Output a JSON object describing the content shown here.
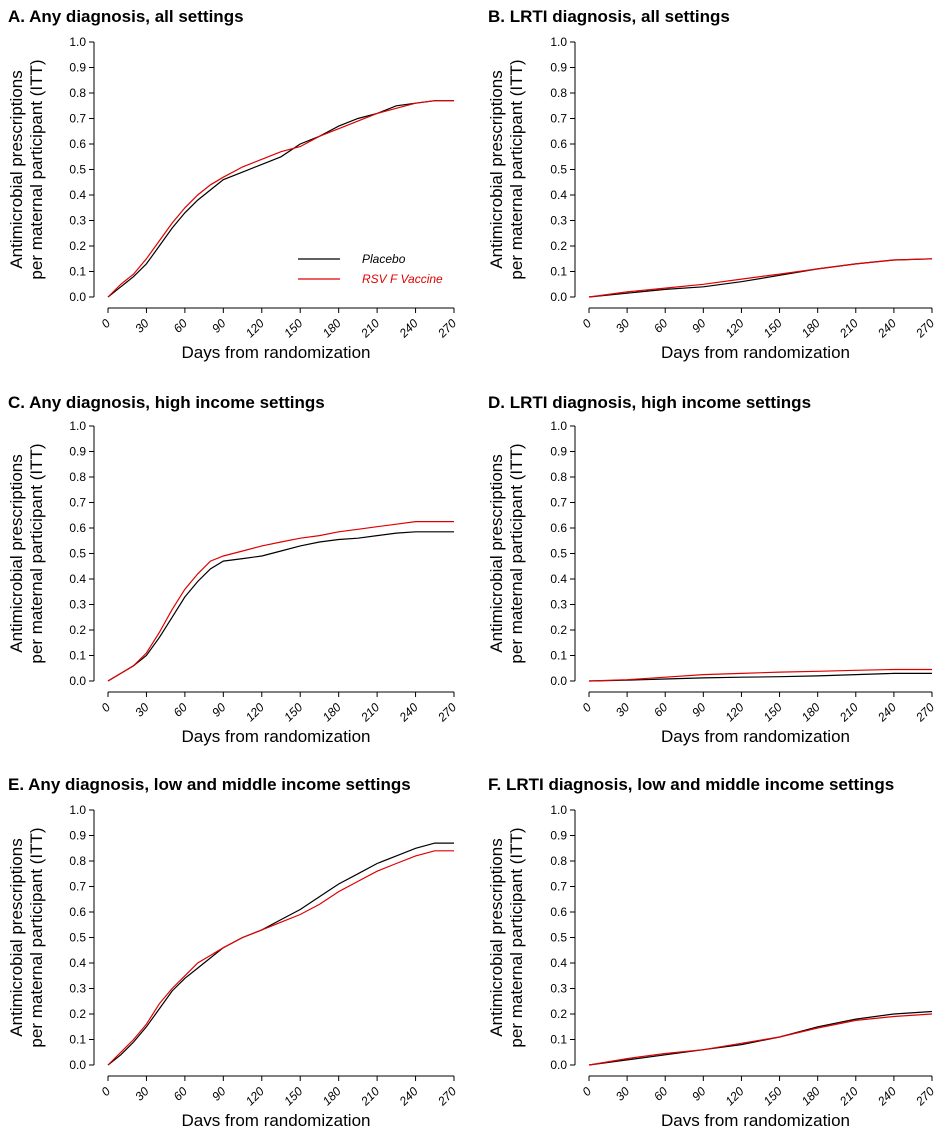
{
  "legend": {
    "entries": [
      {
        "label": "Placebo",
        "color": "#000000"
      },
      {
        "label": "RSV F Vaccine",
        "color": "#e00000"
      }
    ]
  },
  "chart_data": [
    {
      "type": "line",
      "title": "A. Any diagnosis, all settings",
      "xlabel": "Days from randomization",
      "ylabel": [
        "Antimicrobial prescriptions",
        "per maternal participant (ITT)"
      ],
      "xlim": [
        0,
        270
      ],
      "ylim": [
        0,
        1.0
      ],
      "xticks": [
        "0",
        "30",
        "60",
        "90",
        "120",
        "150",
        "180",
        "210",
        "240",
        "270"
      ],
      "yticks": [
        "0.0",
        "0.1",
        "0.2",
        "0.3",
        "0.4",
        "0.5",
        "0.6",
        "0.7",
        "0.8",
        "0.9",
        "1.0"
      ],
      "legend_position": "inside-bottom-right",
      "series": [
        {
          "name": "Placebo",
          "color": "#000000",
          "x": [
            0,
            10,
            20,
            30,
            40,
            50,
            60,
            70,
            80,
            90,
            105,
            120,
            135,
            150,
            165,
            180,
            195,
            210,
            225,
            240,
            255,
            270
          ],
          "y": [
            0.0,
            0.04,
            0.08,
            0.13,
            0.2,
            0.27,
            0.33,
            0.38,
            0.42,
            0.46,
            0.49,
            0.52,
            0.55,
            0.6,
            0.63,
            0.67,
            0.7,
            0.72,
            0.75,
            0.76,
            0.77,
            0.77
          ]
        },
        {
          "name": "RSV F Vaccine",
          "color": "#e00000",
          "x": [
            0,
            10,
            20,
            30,
            40,
            50,
            60,
            70,
            80,
            90,
            105,
            120,
            135,
            150,
            165,
            180,
            195,
            210,
            225,
            240,
            255,
            270
          ],
          "y": [
            0.0,
            0.05,
            0.09,
            0.15,
            0.22,
            0.29,
            0.35,
            0.4,
            0.44,
            0.47,
            0.51,
            0.54,
            0.57,
            0.59,
            0.63,
            0.66,
            0.69,
            0.72,
            0.74,
            0.76,
            0.77,
            0.77
          ]
        }
      ]
    },
    {
      "type": "line",
      "title": "B. LRTI diagnosis, all settings",
      "xlabel": "Days from randomization",
      "ylabel": [
        "Antimicrobial prescriptions",
        "per maternal participant (ITT)"
      ],
      "xlim": [
        0,
        270
      ],
      "ylim": [
        0,
        1.0
      ],
      "xticks": [
        "0",
        "30",
        "60",
        "90",
        "120",
        "150",
        "180",
        "210",
        "240",
        "270"
      ],
      "yticks": [
        "0.0",
        "0.1",
        "0.2",
        "0.3",
        "0.4",
        "0.5",
        "0.6",
        "0.7",
        "0.8",
        "0.9",
        "1.0"
      ],
      "series": [
        {
          "name": "Placebo",
          "color": "#000000",
          "x": [
            0,
            30,
            60,
            90,
            120,
            150,
            180,
            210,
            240,
            270
          ],
          "y": [
            0.0,
            0.015,
            0.03,
            0.04,
            0.06,
            0.085,
            0.11,
            0.13,
            0.145,
            0.15
          ]
        },
        {
          "name": "RSV F Vaccine",
          "color": "#e00000",
          "x": [
            0,
            30,
            60,
            90,
            120,
            150,
            180,
            210,
            240,
            270
          ],
          "y": [
            0.0,
            0.02,
            0.035,
            0.05,
            0.07,
            0.09,
            0.11,
            0.13,
            0.145,
            0.15
          ]
        }
      ]
    },
    {
      "type": "line",
      "title": "C. Any diagnosis, high income settings",
      "xlabel": "Days from randomization",
      "ylabel": [
        "Antimicrobial prescriptions",
        "per maternal participant (ITT)"
      ],
      "xlim": [
        0,
        270
      ],
      "ylim": [
        0,
        1.0
      ],
      "xticks": [
        "0",
        "30",
        "60",
        "90",
        "120",
        "150",
        "180",
        "210",
        "240",
        "270"
      ],
      "yticks": [
        "0.0",
        "0.1",
        "0.2",
        "0.3",
        "0.4",
        "0.5",
        "0.6",
        "0.7",
        "0.8",
        "0.9",
        "1.0"
      ],
      "series": [
        {
          "name": "Placebo",
          "color": "#000000",
          "x": [
            0,
            10,
            20,
            30,
            40,
            50,
            60,
            70,
            80,
            90,
            105,
            120,
            135,
            150,
            165,
            180,
            195,
            210,
            225,
            240,
            255,
            270
          ],
          "y": [
            0.0,
            0.03,
            0.06,
            0.1,
            0.17,
            0.25,
            0.33,
            0.39,
            0.44,
            0.47,
            0.48,
            0.49,
            0.51,
            0.53,
            0.545,
            0.555,
            0.56,
            0.57,
            0.58,
            0.585,
            0.585,
            0.585
          ]
        },
        {
          "name": "RSV F Vaccine",
          "color": "#e00000",
          "x": [
            0,
            10,
            20,
            30,
            40,
            50,
            60,
            70,
            80,
            90,
            105,
            120,
            135,
            150,
            165,
            180,
            195,
            210,
            225,
            240,
            255,
            270
          ],
          "y": [
            0.0,
            0.03,
            0.06,
            0.11,
            0.19,
            0.28,
            0.36,
            0.42,
            0.47,
            0.49,
            0.51,
            0.53,
            0.545,
            0.56,
            0.57,
            0.585,
            0.595,
            0.605,
            0.615,
            0.625,
            0.625,
            0.625
          ]
        }
      ]
    },
    {
      "type": "line",
      "title": "D. LRTI diagnosis, high income settings",
      "xlabel": "Days from randomization",
      "ylabel": [
        "Antimicrobial prescriptions",
        "per maternal participant (ITT)"
      ],
      "xlim": [
        0,
        270
      ],
      "ylim": [
        0,
        1.0
      ],
      "xticks": [
        "0",
        "30",
        "60",
        "90",
        "120",
        "150",
        "180",
        "210",
        "240",
        "270"
      ],
      "yticks": [
        "0.0",
        "0.1",
        "0.2",
        "0.3",
        "0.4",
        "0.5",
        "0.6",
        "0.7",
        "0.8",
        "0.9",
        "1.0"
      ],
      "series": [
        {
          "name": "Placebo",
          "color": "#000000",
          "x": [
            0,
            30,
            60,
            90,
            120,
            150,
            180,
            210,
            240,
            270
          ],
          "y": [
            0.0,
            0.003,
            0.008,
            0.012,
            0.015,
            0.017,
            0.02,
            0.025,
            0.03,
            0.03
          ]
        },
        {
          "name": "RSV F Vaccine",
          "color": "#e00000",
          "x": [
            0,
            30,
            60,
            90,
            120,
            150,
            180,
            210,
            240,
            270
          ],
          "y": [
            0.0,
            0.005,
            0.015,
            0.025,
            0.03,
            0.035,
            0.038,
            0.042,
            0.045,
            0.045
          ]
        }
      ]
    },
    {
      "type": "line",
      "title": "E. Any diagnosis, low and middle income settings",
      "xlabel": "Days from randomization",
      "ylabel": [
        "Antimicrobial prescriptions",
        "per maternal participant (ITT)"
      ],
      "xlim": [
        0,
        270
      ],
      "ylim": [
        0,
        1.0
      ],
      "xticks": [
        "0",
        "30",
        "60",
        "90",
        "120",
        "150",
        "180",
        "210",
        "240",
        "270"
      ],
      "yticks": [
        "0.0",
        "0.1",
        "0.2",
        "0.3",
        "0.4",
        "0.5",
        "0.6",
        "0.7",
        "0.8",
        "0.9",
        "1.0"
      ],
      "series": [
        {
          "name": "Placebo",
          "color": "#000000",
          "x": [
            0,
            10,
            20,
            30,
            40,
            50,
            60,
            70,
            80,
            90,
            105,
            120,
            135,
            150,
            165,
            180,
            195,
            210,
            225,
            240,
            255,
            270
          ],
          "y": [
            0.0,
            0.04,
            0.09,
            0.15,
            0.22,
            0.29,
            0.34,
            0.38,
            0.42,
            0.46,
            0.5,
            0.53,
            0.57,
            0.61,
            0.66,
            0.71,
            0.75,
            0.79,
            0.82,
            0.85,
            0.87,
            0.87
          ]
        },
        {
          "name": "RSV F Vaccine",
          "color": "#e00000",
          "x": [
            0,
            10,
            20,
            30,
            40,
            50,
            60,
            70,
            80,
            90,
            105,
            120,
            135,
            150,
            165,
            180,
            195,
            210,
            225,
            240,
            255,
            270
          ],
          "y": [
            0.0,
            0.05,
            0.1,
            0.16,
            0.24,
            0.3,
            0.35,
            0.4,
            0.43,
            0.46,
            0.5,
            0.53,
            0.56,
            0.59,
            0.63,
            0.68,
            0.72,
            0.76,
            0.79,
            0.82,
            0.84,
            0.84
          ]
        }
      ]
    },
    {
      "type": "line",
      "title": "F. LRTI diagnosis, low and middle income settings",
      "xlabel": "Days from randomization",
      "ylabel": [
        "Antimicrobial prescriptions",
        "per maternal participant (ITT)"
      ],
      "xlim": [
        0,
        270
      ],
      "ylim": [
        0,
        1.0
      ],
      "xticks": [
        "0",
        "30",
        "60",
        "90",
        "120",
        "150",
        "180",
        "210",
        "240",
        "270"
      ],
      "yticks": [
        "0.0",
        "0.1",
        "0.2",
        "0.3",
        "0.4",
        "0.5",
        "0.6",
        "0.7",
        "0.8",
        "0.9",
        "1.0"
      ],
      "series": [
        {
          "name": "Placebo",
          "color": "#000000",
          "x": [
            0,
            30,
            60,
            90,
            120,
            150,
            180,
            210,
            240,
            270
          ],
          "y": [
            0.0,
            0.02,
            0.04,
            0.06,
            0.08,
            0.11,
            0.15,
            0.18,
            0.2,
            0.21
          ]
        },
        {
          "name": "RSV F Vaccine",
          "color": "#e00000",
          "x": [
            0,
            30,
            60,
            90,
            120,
            150,
            180,
            210,
            240,
            270
          ],
          "y": [
            0.0,
            0.025,
            0.045,
            0.06,
            0.085,
            0.11,
            0.145,
            0.175,
            0.19,
            0.2
          ]
        }
      ]
    }
  ]
}
